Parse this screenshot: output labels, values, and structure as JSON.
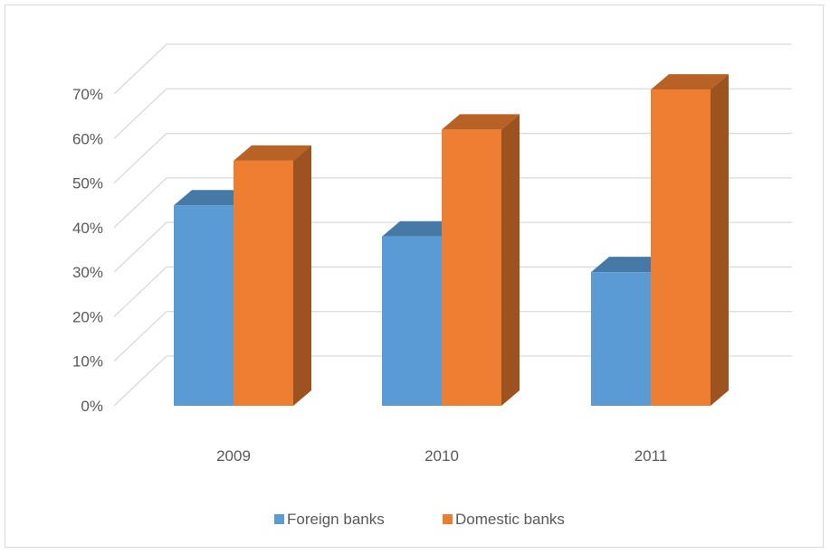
{
  "chart_data": {
    "type": "bar",
    "variant": "3d-clustered-column",
    "categories": [
      "2009",
      "2010",
      "2011"
    ],
    "series": [
      {
        "name": "Foreign banks",
        "values": [
          45,
          38,
          30
        ],
        "color": "#5b9bd5"
      },
      {
        "name": "Domestic banks",
        "values": [
          55,
          62,
          71
        ],
        "color": "#ed7d31"
      }
    ],
    "ylim": [
      0,
      70
    ],
    "y_ticks": [
      0,
      10,
      20,
      30,
      40,
      50,
      60,
      70
    ],
    "y_tick_labels": [
      "0%",
      "10%",
      "20%",
      "30%",
      "40%",
      "50%",
      "60%",
      "70%"
    ],
    "grid": true,
    "legend_position": "bottom",
    "title": "",
    "xlabel": "",
    "ylabel": ""
  }
}
